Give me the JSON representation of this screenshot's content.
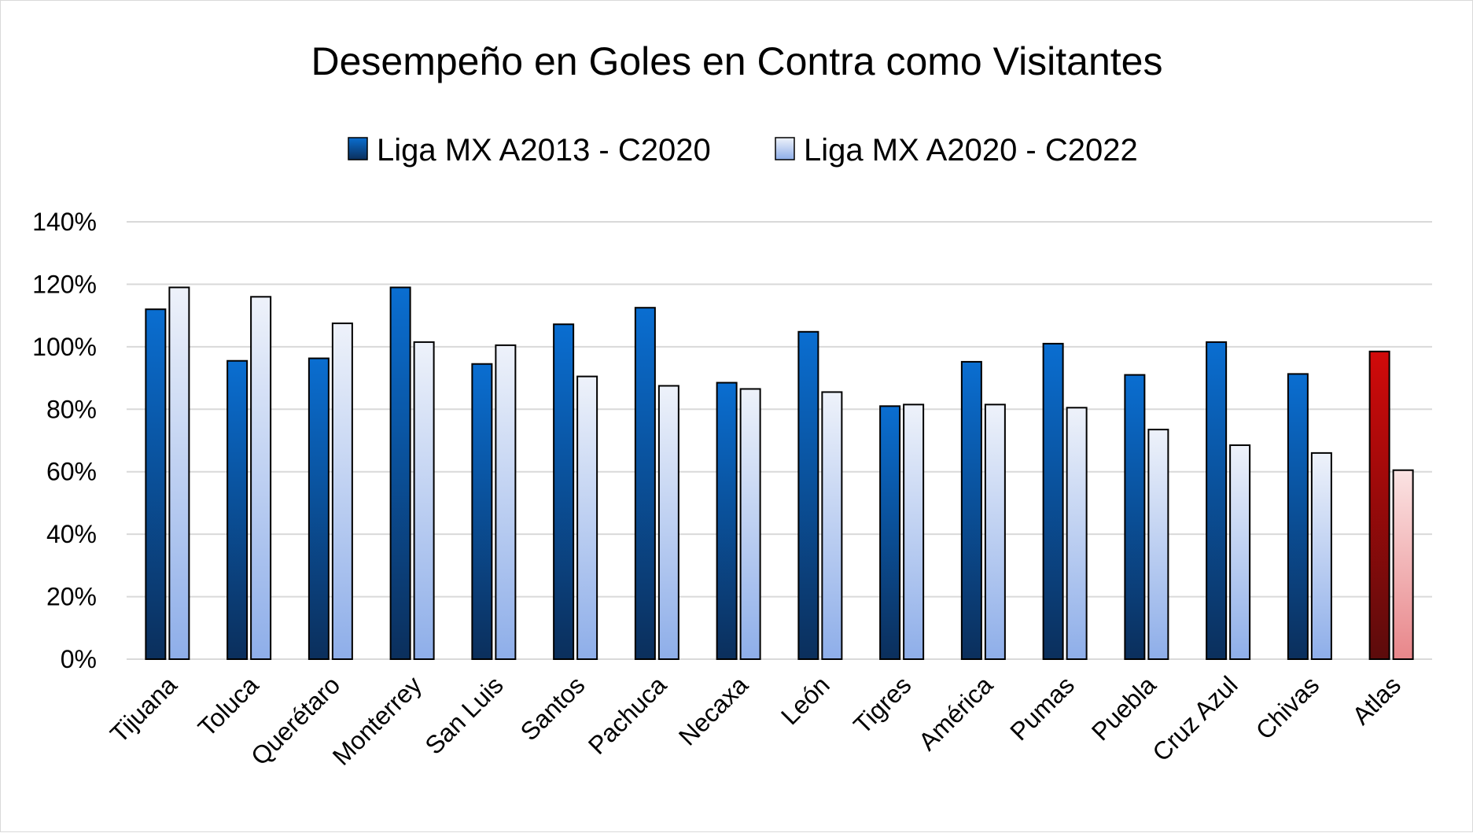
{
  "chart_data": {
    "type": "bar",
    "title": "Desempeño en Goles en Contra como Visitantes",
    "categories": [
      "Tijuana",
      "Toluca",
      "Querétaro",
      "Monterrey",
      "San Luis",
      "Santos",
      "Pachuca",
      "Necaxa",
      "León",
      "Tigres",
      "América",
      "Pumas",
      "Puebla",
      "Cruz Azul",
      "Chivas",
      "Atlas"
    ],
    "series": [
      {
        "name": "Liga MX A2013 - C2020",
        "values": [
          1.12,
          0.955,
          0.963,
          1.19,
          0.945,
          1.072,
          1.125,
          0.885,
          1.048,
          0.81,
          0.952,
          1.01,
          0.91,
          1.015,
          0.913,
          0.985
        ]
      },
      {
        "name": "Liga MX A2020 - C2022",
        "values": [
          1.19,
          1.16,
          1.075,
          1.015,
          1.005,
          0.905,
          0.875,
          0.865,
          0.855,
          0.815,
          0.815,
          0.805,
          0.735,
          0.685,
          0.66,
          0.605
        ]
      }
    ],
    "ylim": [
      0,
      1.4
    ],
    "yticks": [
      0,
      0.2,
      0.4,
      0.6,
      0.8,
      1.0,
      1.2,
      1.4
    ],
    "ytick_labels": [
      "0%",
      "20%",
      "40%",
      "60%",
      "80%",
      "100%",
      "120%",
      "140%"
    ],
    "grid": true,
    "legend_position": "top",
    "highlighted_category": "Atlas",
    "colors": {
      "series1_top": "#0a6ed1",
      "series1_bottom": "#0b2f5c",
      "series2_top": "#eef2fa",
      "series2_bottom": "#8eaee9",
      "highlight1_top": "#d10a0a",
      "highlight1_bottom": "#5c0b0b",
      "highlight2_top": "#fbe3e3",
      "highlight2_bottom": "#e8868a",
      "gridline": "#d9d9d9",
      "bar_outline": "#000000"
    }
  }
}
